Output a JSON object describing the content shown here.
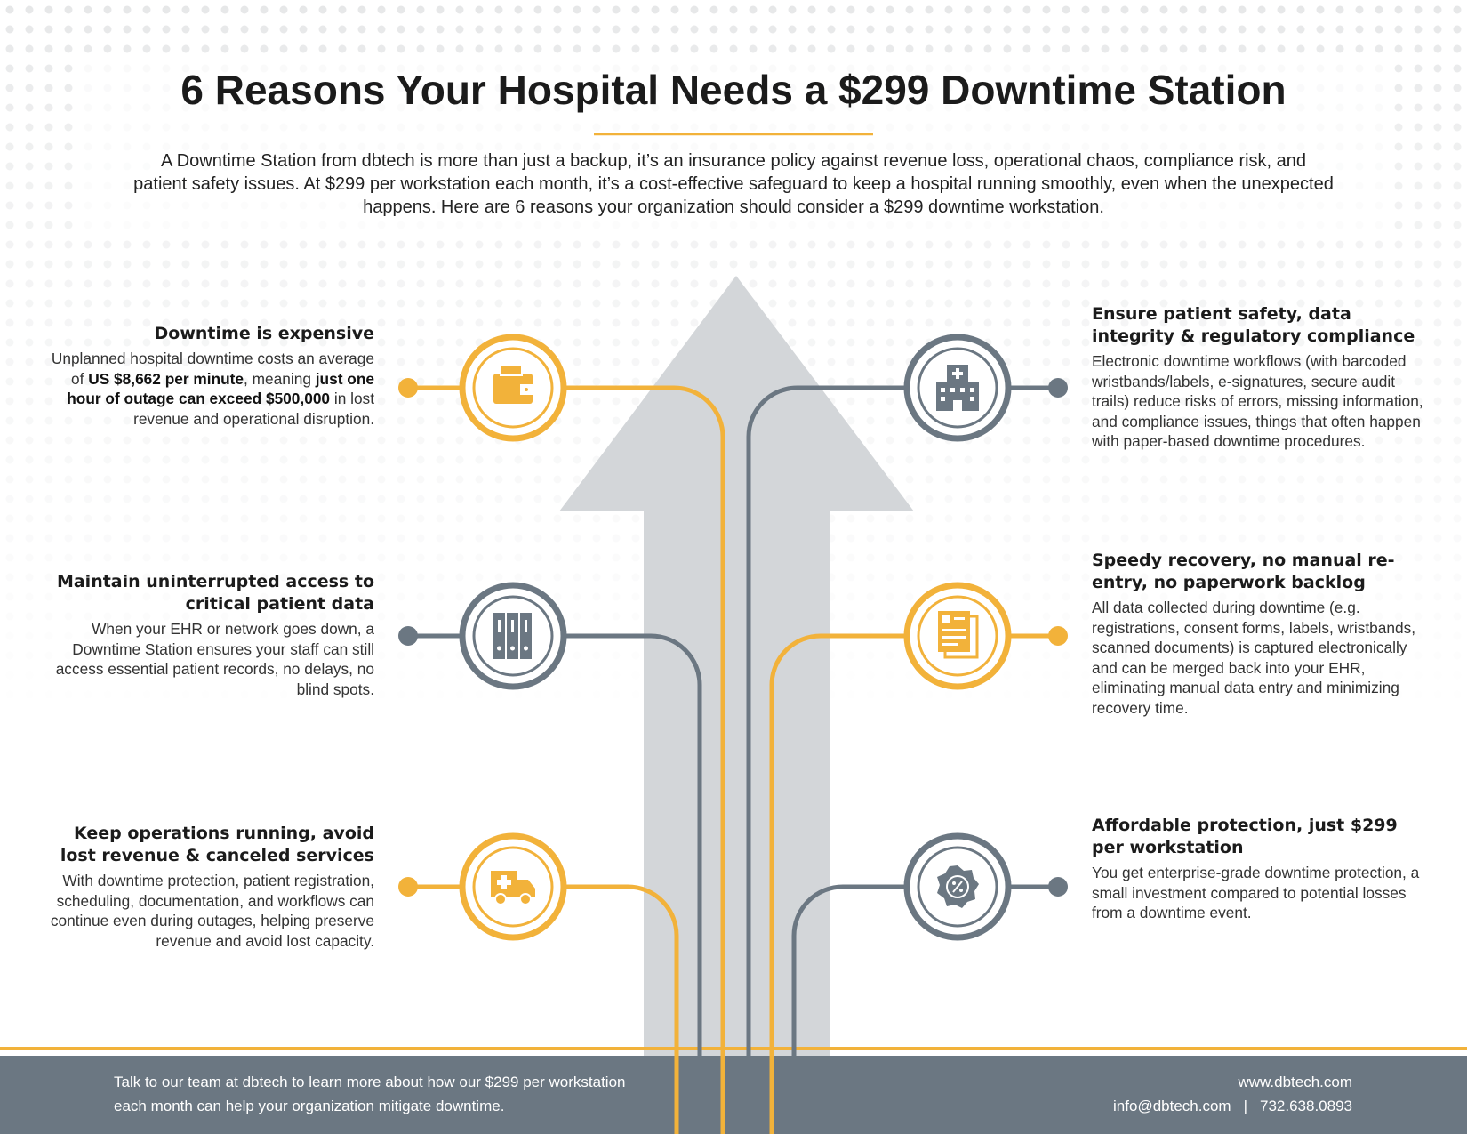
{
  "title": "6 Reasons Your Hospital Needs a $299 Downtime Station",
  "intro": "A Downtime Station from dbtech is more than just a backup, it’s an insurance policy against revenue loss, operational chaos, compliance risk, and patient safety issues. At $299 per workstation each month, it’s a cost-effective safeguard to keep a hospital running smoothly, even when the unexpected happens. Here are 6 reasons your organization should consider a $299 downtime workstation.",
  "left_reasons": [
    {
      "heading": "Downtime is expensive",
      "body": [
        {
          "text": "Unplanned hospital downtime costs an average of ",
          "bold": false
        },
        {
          "text": "US $8,662 per minute",
          "bold": true
        },
        {
          "text": ", meaning ",
          "bold": false
        },
        {
          "text": "just one hour of outage can exceed $500,000",
          "bold": true
        },
        {
          "text": " in lost revenue and operational disruption.",
          "bold": false
        }
      ]
    },
    {
      "heading": "Maintain uninterrupted access to critical patient data",
      "body": [
        {
          "text": "When your EHR or network goes down, a Downtime Station ensures your staff can still access essential patient records, no delays, no blind spots.",
          "bold": false
        }
      ]
    },
    {
      "heading": "Keep operations running, avoid lost revenue & canceled services",
      "body": [
        {
          "text": "With downtime protection, patient registration, scheduling, documentation, and workflows can continue even during outages, helping preserve revenue and avoid lost capacity.",
          "bold": false
        }
      ]
    }
  ],
  "right_reasons": [
    {
      "heading": "Ensure patient safety, data integrity & regulatory compliance",
      "body": [
        {
          "text": "Electronic downtime workflows (with barcoded wristbands/labels, e-signatures, secure audit trails) reduce risks of errors, missing information, and compliance issues, things that often happen with paper-based downtime procedures.",
          "bold": false
        }
      ]
    },
    {
      "heading": "Speedy recovery, no manual re-entry, no paperwork backlog",
      "body": [
        {
          "text": "All data collected during downtime (e.g. registrations, consent forms, labels, wristbands, scanned documents) is captured electronically and can be merged back into your EHR, eliminating manual data entry and minimizing recovery time.",
          "bold": false
        }
      ]
    },
    {
      "heading": "Affordable protection, just $299 per workstation",
      "body": [
        {
          "text": "You get enterprise-grade downtime protection, a small investment compared to potential losses from a downtime event.",
          "bold": false
        }
      ]
    }
  ],
  "footer": {
    "message": "Talk to our team at dbtech to learn more about how our $299 per workstation each month can help your organization mitigate downtime.",
    "website": "www.dbtech.com",
    "email": "info@dbtech.com",
    "phone": "732.638.0893"
  }
}
